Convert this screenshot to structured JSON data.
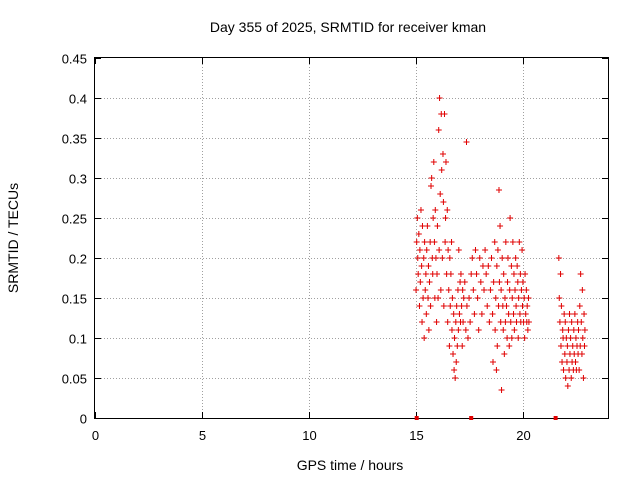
{
  "chart_data": {
    "type": "scatter",
    "title": "Day 355 of 2025, SRMTID for receiver kman",
    "xlabel": "GPS time / hours",
    "ylabel": "SRMTID / TECUs",
    "xlim": [
      0,
      24
    ],
    "ylim": [
      0,
      0.45
    ],
    "xticks": [
      0,
      5,
      10,
      15,
      20
    ],
    "xtick_labels": [
      "0",
      "5",
      "10",
      "15",
      "20"
    ],
    "yticks": [
      0,
      0.05,
      0.1,
      0.15,
      0.2,
      0.25,
      0.3,
      0.35,
      0.4,
      0.45
    ],
    "ytick_labels": [
      "0",
      "0.05",
      "0.1",
      "0.15",
      "0.2",
      "0.25",
      "0.3",
      "0.35",
      "0.4",
      "0.45"
    ],
    "grid": true,
    "marker": "+",
    "series_color": "#e00000",
    "series": [
      {
        "name": "SRMTID",
        "points": [
          [
            15.02,
            0.16
          ],
          [
            15.05,
            0.22
          ],
          [
            15.08,
            0.25
          ],
          [
            15.1,
            0.2
          ],
          [
            15.12,
            0.18
          ],
          [
            15.15,
            0.23
          ],
          [
            15.18,
            0.14
          ],
          [
            15.2,
            0.21
          ],
          [
            15.22,
            0.17
          ],
          [
            15.25,
            0.26
          ],
          [
            15.28,
            0.19
          ],
          [
            15.3,
            0.12
          ],
          [
            15.32,
            0.24
          ],
          [
            15.35,
            0.15
          ],
          [
            15.38,
            0.2
          ],
          [
            15.4,
            0.1
          ],
          [
            15.42,
            0.22
          ],
          [
            15.45,
            0.16
          ],
          [
            15.48,
            0.18
          ],
          [
            15.5,
            0.13
          ],
          [
            15.52,
            0.21
          ],
          [
            15.55,
            0.24
          ],
          [
            15.58,
            0.15
          ],
          [
            15.6,
            0.19
          ],
          [
            15.62,
            0.11
          ],
          [
            15.65,
            0.17
          ],
          [
            15.68,
            0.22
          ],
          [
            15.7,
            0.14
          ],
          [
            15.72,
            0.29
          ],
          [
            15.75,
            0.3
          ],
          [
            15.78,
            0.2
          ],
          [
            15.8,
            0.18
          ],
          [
            15.82,
            0.25
          ],
          [
            15.85,
            0.32
          ],
          [
            15.88,
            0.22
          ],
          [
            15.9,
            0.15
          ],
          [
            15.92,
            0.26
          ],
          [
            15.95,
            0.2
          ],
          [
            15.98,
            0.12
          ],
          [
            16.0,
            0.18
          ],
          [
            16.02,
            0.24
          ],
          [
            16.05,
            0.15
          ],
          [
            16.08,
            0.36
          ],
          [
            16.1,
            0.21
          ],
          [
            16.12,
            0.4
          ],
          [
            16.15,
            0.28
          ],
          [
            16.18,
            0.16
          ],
          [
            16.2,
            0.38
          ],
          [
            16.22,
            0.31
          ],
          [
            16.25,
            0.2
          ],
          [
            16.28,
            0.33
          ],
          [
            16.3,
            0.27
          ],
          [
            16.32,
            0.14
          ],
          [
            16.35,
            0.38
          ],
          [
            16.38,
            0.22
          ],
          [
            16.4,
            0.25
          ],
          [
            16.42,
            0.32
          ],
          [
            16.45,
            0.18
          ],
          [
            16.48,
            0.26
          ],
          [
            16.5,
            0.12
          ],
          [
            16.52,
            0.21
          ],
          [
            16.55,
            0.16
          ],
          [
            16.58,
            0.09
          ],
          [
            16.6,
            0.2
          ],
          [
            16.62,
            0.14
          ],
          [
            16.65,
            0.18
          ],
          [
            16.68,
            0.22
          ],
          [
            16.7,
            0.11
          ],
          [
            16.72,
            0.15
          ],
          [
            16.75,
            0.08
          ],
          [
            16.78,
            0.13
          ],
          [
            16.8,
            0.06
          ],
          [
            16.82,
            0.1
          ],
          [
            16.85,
            0.05
          ],
          [
            16.88,
            0.12
          ],
          [
            16.9,
            0.07
          ],
          [
            16.92,
            0.14
          ],
          [
            16.95,
            0.09
          ],
          [
            16.98,
            0.16
          ],
          [
            17.0,
            0.11
          ],
          [
            17.02,
            0.21
          ],
          [
            17.05,
            0.13
          ],
          [
            17.08,
            0.17
          ],
          [
            17.1,
            0.12
          ],
          [
            17.12,
            0.18
          ],
          [
            17.15,
            0.14
          ],
          [
            17.18,
            0.09
          ],
          [
            17.2,
            0.16
          ],
          [
            17.22,
            0.12
          ],
          [
            17.25,
            0.15
          ],
          [
            17.3,
            0.17
          ],
          [
            17.35,
            0.11
          ],
          [
            17.38,
            0.345
          ],
          [
            17.4,
            0.14
          ],
          [
            17.45,
            0.1
          ],
          [
            17.5,
            0.15
          ],
          [
            17.55,
            0.12
          ],
          [
            17.6,
            0.18
          ],
          [
            17.65,
            0.2
          ],
          [
            17.7,
            0.16
          ],
          [
            17.75,
            0.13
          ],
          [
            17.8,
            0.21
          ],
          [
            17.85,
            0.18
          ],
          [
            17.9,
            0.15
          ],
          [
            17.95,
            0.11
          ],
          [
            18.0,
            0.2
          ],
          [
            18.05,
            0.17
          ],
          [
            18.1,
            0.13
          ],
          [
            18.15,
            0.19
          ],
          [
            18.2,
            0.16
          ],
          [
            18.25,
            0.21
          ],
          [
            18.3,
            0.18
          ],
          [
            18.35,
            0.14
          ],
          [
            18.4,
            0.19
          ],
          [
            18.45,
            0.12
          ],
          [
            18.5,
            0.16
          ],
          [
            18.55,
            0.2
          ],
          [
            18.6,
            0.13
          ],
          [
            18.62,
            0.07
          ],
          [
            18.65,
            0.17
          ],
          [
            18.7,
            0.22
          ],
          [
            18.72,
            0.11
          ],
          [
            18.75,
            0.15
          ],
          [
            18.78,
            0.06
          ],
          [
            18.8,
            0.19
          ],
          [
            18.82,
            0.09
          ],
          [
            18.85,
            0.21
          ],
          [
            18.88,
            0.14
          ],
          [
            18.9,
            0.285
          ],
          [
            18.92,
            0.17
          ],
          [
            18.95,
            0.24
          ],
          [
            18.98,
            0.12
          ],
          [
            19.0,
            0.16
          ],
          [
            19.02,
            0.035
          ],
          [
            19.05,
            0.2
          ],
          [
            19.08,
            0.14
          ],
          [
            19.1,
            0.11
          ],
          [
            19.12,
            0.18
          ],
          [
            19.15,
            0.08
          ],
          [
            19.18,
            0.15
          ],
          [
            19.2,
            0.12
          ],
          [
            19.22,
            0.22
          ],
          [
            19.25,
            0.14
          ],
          [
            19.28,
            0.1
          ],
          [
            19.3,
            0.17
          ],
          [
            19.32,
            0.2
          ],
          [
            19.35,
            0.13
          ],
          [
            19.38,
            0.09
          ],
          [
            19.4,
            0.16
          ],
          [
            19.42,
            0.25
          ],
          [
            19.45,
            0.12
          ],
          [
            19.48,
            0.19
          ],
          [
            19.5,
            0.1
          ],
          [
            19.52,
            0.15
          ],
          [
            19.55,
            0.22
          ],
          [
            19.58,
            0.13
          ],
          [
            19.6,
            0.18
          ],
          [
            19.62,
            0.11
          ],
          [
            19.65,
            0.16
          ],
          [
            19.68,
            0.2
          ],
          [
            19.7,
            0.14
          ],
          [
            19.72,
            0.12
          ],
          [
            19.75,
            0.19
          ],
          [
            19.78,
            0.17
          ],
          [
            19.8,
            0.1
          ],
          [
            19.82,
            0.15
          ],
          [
            19.85,
            0.22
          ],
          [
            19.88,
            0.13
          ],
          [
            19.9,
            0.18
          ],
          [
            19.92,
            0.12
          ],
          [
            19.95,
            0.16
          ],
          [
            19.98,
            0.21
          ],
          [
            20.0,
            0.14
          ],
          [
            20.02,
            0.17
          ],
          [
            20.05,
            0.12
          ],
          [
            20.08,
            0.15
          ],
          [
            20.1,
            0.1
          ],
          [
            20.12,
            0.18
          ],
          [
            20.15,
            0.13
          ],
          [
            20.18,
            0.16
          ],
          [
            20.2,
            0.12
          ],
          [
            20.22,
            0.14
          ],
          [
            20.25,
            0.11
          ],
          [
            20.28,
            0.15
          ],
          [
            20.3,
            0.12
          ],
          [
            21.7,
            0.2
          ],
          [
            21.72,
            0.15
          ],
          [
            21.75,
            0.12
          ],
          [
            21.78,
            0.18
          ],
          [
            21.8,
            0.09
          ],
          [
            21.82,
            0.14
          ],
          [
            21.85,
            0.07
          ],
          [
            21.88,
            0.11
          ],
          [
            21.9,
            0.1
          ],
          [
            21.92,
            0.06
          ],
          [
            21.95,
            0.13
          ],
          [
            21.98,
            0.08
          ],
          [
            22.0,
            0.12
          ],
          [
            22.02,
            0.05
          ],
          [
            22.05,
            0.1
          ],
          [
            22.08,
            0.07
          ],
          [
            22.1,
            0.09
          ],
          [
            22.12,
            0.04
          ],
          [
            22.15,
            0.11
          ],
          [
            22.18,
            0.06
          ],
          [
            22.2,
            0.13
          ],
          [
            22.22,
            0.08
          ],
          [
            22.25,
            0.1
          ],
          [
            22.28,
            0.05
          ],
          [
            22.3,
            0.12
          ],
          [
            22.32,
            0.07
          ],
          [
            22.35,
            0.09
          ],
          [
            22.38,
            0.06
          ],
          [
            22.4,
            0.11
          ],
          [
            22.42,
            0.08
          ],
          [
            22.45,
            0.13
          ],
          [
            22.48,
            0.07
          ],
          [
            22.5,
            0.1
          ],
          [
            22.52,
            0.06
          ],
          [
            22.55,
            0.09
          ],
          [
            22.58,
            0.12
          ],
          [
            22.6,
            0.08
          ],
          [
            22.62,
            0.11
          ],
          [
            22.65,
            0.06
          ],
          [
            22.68,
            0.14
          ],
          [
            22.7,
            0.09
          ],
          [
            22.72,
            0.18
          ],
          [
            22.75,
            0.12
          ],
          [
            22.78,
            0.08
          ],
          [
            22.8,
            0.16
          ],
          [
            22.82,
            0.1
          ],
          [
            22.85,
            0.05
          ],
          [
            22.88,
            0.13
          ],
          [
            22.9,
            0.09
          ],
          [
            22.92,
            0.11
          ]
        ]
      }
    ],
    "zero_markers": [
      15.05,
      17.6,
      21.55
    ]
  }
}
